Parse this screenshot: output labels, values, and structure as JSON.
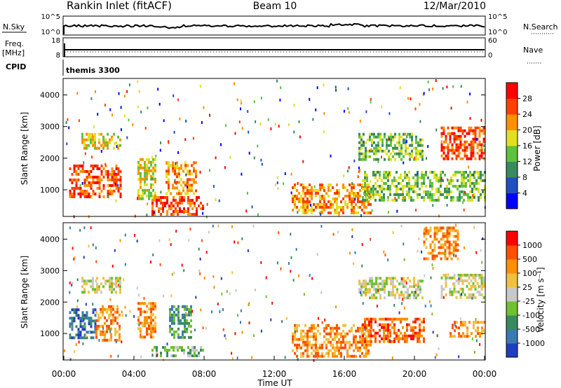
{
  "header": {
    "station": "Rankin Inlet (fitACF)",
    "beam": "Beam 10",
    "date": "12/Mar/2010"
  },
  "top_panels": {
    "nsky_label": "N.Sky",
    "nsky_ticks": [
      "10^5",
      "10^0"
    ],
    "nsearch_label": "N.Search",
    "nsearch_ticks": [
      "10^5",
      "10^0"
    ],
    "freq_label": "Freq.",
    "freq_unit": "[MHz]",
    "freq_ticks": [
      "18",
      "8"
    ],
    "nave_label": "Nave",
    "nave_ticks": [
      "60",
      "0"
    ],
    "cpid_label": "CPID",
    "cpid_value": "themis 3300"
  },
  "chart_data": [
    {
      "type": "heatmap",
      "name": "power-panel",
      "xlabel": "",
      "ylabel": "Slant Range [km]",
      "x_range_hours": [
        0,
        24
      ],
      "ylim": [
        180,
        4500
      ],
      "yticks": [
        "1000",
        "2000",
        "3000",
        "4000"
      ],
      "colorbar_label": "Power [dB]",
      "colorbar_ticks": [
        "28",
        "24",
        "20",
        "16",
        "12",
        "8",
        "4"
      ],
      "colors": [
        "#0000ff",
        "#2050c0",
        "#3a8a60",
        "#60c040",
        "#e0e020",
        "#ff9000",
        "#ff4000",
        "#ff0000"
      ],
      "patches": [
        {
          "t0": 0.3,
          "t1": 3.2,
          "r0": 800,
          "r1": 1800,
          "level": 6
        },
        {
          "t0": 1.0,
          "t1": 3.2,
          "r0": 2300,
          "r1": 2800,
          "level": 4
        },
        {
          "t0": 4.2,
          "t1": 5.2,
          "r0": 700,
          "r1": 2000,
          "level": 4
        },
        {
          "t0": 5.8,
          "t1": 7.5,
          "r0": 900,
          "r1": 1900,
          "level": 5
        },
        {
          "t0": 5.0,
          "t1": 8.0,
          "r0": 250,
          "r1": 800,
          "level": 6
        },
        {
          "t0": 13.0,
          "t1": 17.5,
          "r0": 300,
          "r1": 1200,
          "level": 5
        },
        {
          "t0": 17.0,
          "t1": 24.0,
          "r0": 700,
          "r1": 1600,
          "level": 3
        },
        {
          "t0": 16.8,
          "t1": 20.5,
          "r0": 2000,
          "r1": 2800,
          "level": 3
        },
        {
          "t0": 21.5,
          "t1": 24.0,
          "r0": 2000,
          "r1": 3000,
          "level": 6
        }
      ]
    },
    {
      "type": "heatmap",
      "name": "velocity-panel",
      "xlabel": "Time UT",
      "ylabel": "Slant Range [km]",
      "x_range_hours": [
        0,
        24
      ],
      "xticks": [
        "00:00",
        "04:00",
        "08:00",
        "12:00",
        "16:00",
        "20:00",
        "00:00"
      ],
      "ylim": [
        180,
        4500
      ],
      "yticks": [
        "1000",
        "2000",
        "3000",
        "4000"
      ],
      "colorbar_label": "Velocity [m s⁻¹]",
      "colorbar_ticks": [
        "1000",
        "500",
        "100",
        "25",
        "-25",
        "-100",
        "-500",
        "-1000"
      ],
      "colors": [
        "#203cc0",
        "#3a7ab0",
        "#3a8a60",
        "#70c030",
        "#c8c8c8",
        "#f0c040",
        "#ff9000",
        "#ff5000",
        "#ff0000"
      ],
      "patches": [
        {
          "t0": 0.3,
          "t1": 1.8,
          "r0": 900,
          "r1": 1800,
          "level": 1
        },
        {
          "t0": 1.8,
          "t1": 3.2,
          "r0": 800,
          "r1": 1900,
          "level": 6
        },
        {
          "t0": 1.0,
          "t1": 3.2,
          "r0": 2300,
          "r1": 2800,
          "level": 4
        },
        {
          "t0": 4.2,
          "t1": 5.2,
          "r0": 900,
          "r1": 2000,
          "level": 6
        },
        {
          "t0": 6.0,
          "t1": 7.3,
          "r0": 900,
          "r1": 1900,
          "level": 2
        },
        {
          "t0": 5.0,
          "t1": 8.0,
          "r0": 250,
          "r1": 600,
          "level": 3
        },
        {
          "t0": 13.0,
          "t1": 17.5,
          "r0": 300,
          "r1": 1300,
          "level": 6
        },
        {
          "t0": 17.0,
          "t1": 20.5,
          "r0": 700,
          "r1": 1500,
          "level": 7
        },
        {
          "t0": 16.8,
          "t1": 20.5,
          "r0": 2100,
          "r1": 2800,
          "level": 4
        },
        {
          "t0": 21.5,
          "t1": 24.0,
          "r0": 2100,
          "r1": 2900,
          "level": 4
        },
        {
          "t0": 22.0,
          "t1": 24.0,
          "r0": 900,
          "r1": 1400,
          "level": 6
        },
        {
          "t0": 20.5,
          "t1": 22.5,
          "r0": 3400,
          "r1": 4400,
          "level": 6
        }
      ]
    }
  ]
}
